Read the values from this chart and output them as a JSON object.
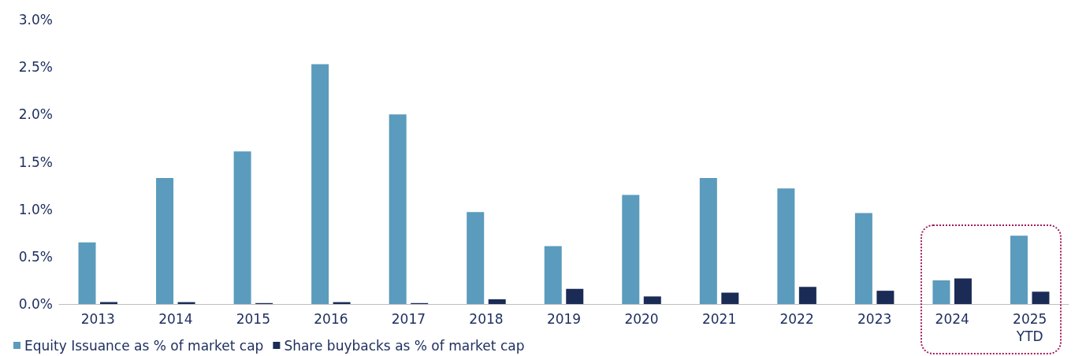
{
  "chart_data": {
    "type": "bar",
    "categories": [
      "2013",
      "2014",
      "2015",
      "2016",
      "2017",
      "2018",
      "2019",
      "2020",
      "2021",
      "2022",
      "2023",
      "2024",
      "2025\nYTD"
    ],
    "series": [
      {
        "name": "Equity Issuance as % of market cap",
        "color": "#5b9bbd",
        "values": [
          0.65,
          1.33,
          1.61,
          2.53,
          2.0,
          0.97,
          0.61,
          1.15,
          1.33,
          1.22,
          0.96,
          0.25,
          0.72
        ]
      },
      {
        "name": "Share buybacks as % of market cap",
        "color": "#1a2b55",
        "values": [
          0.02,
          0.02,
          0.01,
          0.02,
          0.01,
          0.05,
          0.16,
          0.08,
          0.12,
          0.18,
          0.14,
          0.27,
          0.13
        ]
      }
    ],
    "ylim": [
      0,
      3
    ],
    "yticks": [
      {
        "value": 0,
        "label": "0.0%"
      },
      {
        "value": 0.5,
        "label": "0.5%"
      },
      {
        "value": 1,
        "label": "1.0%"
      },
      {
        "value": 1.5,
        "label": "1.5%"
      },
      {
        "value": 2,
        "label": "2.0%"
      },
      {
        "value": 2.5,
        "label": "2.5%"
      },
      {
        "value": 3,
        "label": "3.0%"
      }
    ],
    "grid": false,
    "legend": "bottom left"
  }
}
